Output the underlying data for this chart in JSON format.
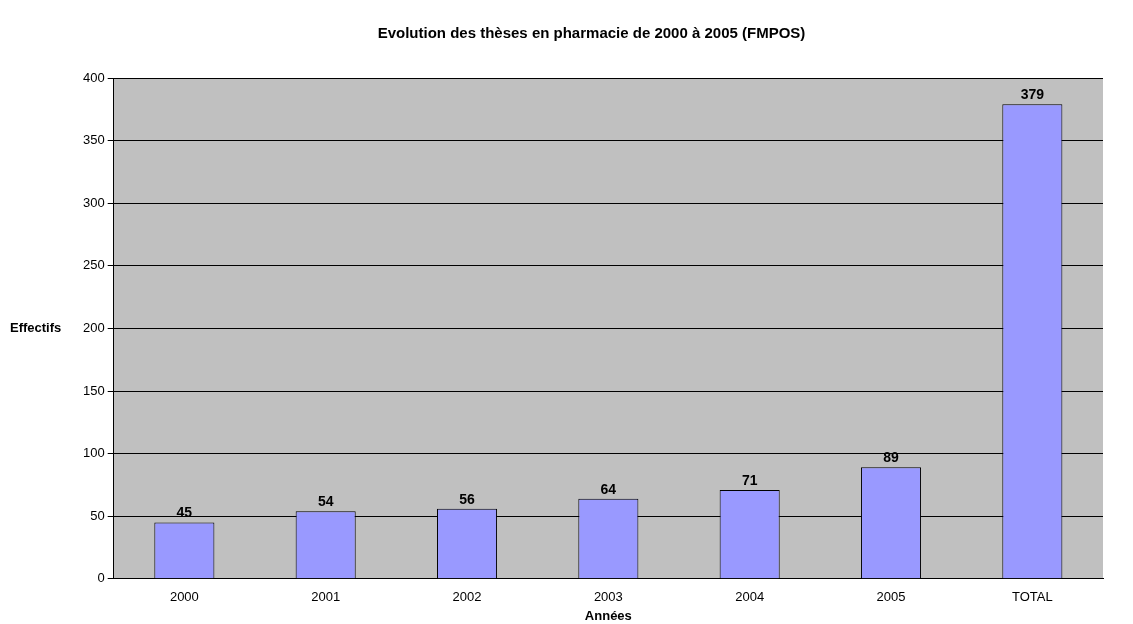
{
  "chart_data": {
    "type": "bar",
    "title": "Evolution des thèses en pharmacie de 2000 à 2005 (FMPOS)",
    "xlabel": "Années",
    "ylabel": "Effectifs",
    "categories": [
      "2000",
      "2001",
      "2002",
      "2003",
      "2004",
      "2005",
      "TOTAL"
    ],
    "values": [
      45,
      54,
      56,
      64,
      71,
      89,
      379
    ],
    "color": "#9999ff",
    "ylim": [
      0,
      400
    ],
    "yticks": [
      0,
      50,
      100,
      150,
      200,
      250,
      300,
      350,
      400
    ],
    "grid": "y",
    "legend": false,
    "data_labels": true
  }
}
